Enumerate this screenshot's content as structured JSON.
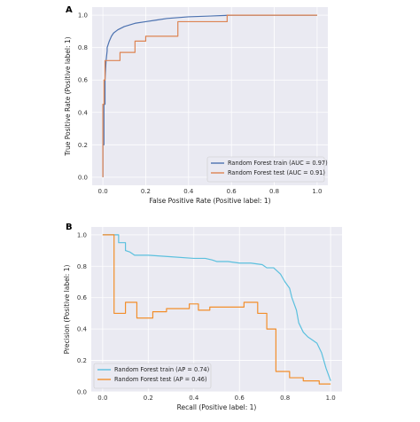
{
  "chart_data": [
    {
      "panel": "A",
      "type": "line",
      "title": "",
      "xlabel": "False Positive Rate (Positive label: 1)",
      "ylabel": "True Positive Rate (Positive label: 1)",
      "xlim": [
        -0.05,
        1.05
      ],
      "ylim": [
        -0.05,
        1.05
      ],
      "xticks": [
        "0.0",
        "0.2",
        "0.4",
        "0.6",
        "0.8",
        "1.0"
      ],
      "yticks": [
        "0.0",
        "0.2",
        "0.4",
        "0.6",
        "0.8",
        "1.0"
      ],
      "grid": true,
      "legend_position": "bottom-right",
      "series": [
        {
          "name": "Random Forest train (AUC = 0.97)",
          "color": "#4c72b0",
          "x": [
            0.0,
            0.0,
            0.005,
            0.005,
            0.01,
            0.01,
            0.015,
            0.02,
            0.02,
            0.03,
            0.04,
            0.05,
            0.07,
            0.1,
            0.15,
            0.2,
            0.25,
            0.3,
            0.4,
            0.5,
            0.6,
            0.7,
            0.8,
            0.9,
            1.0
          ],
          "y": [
            0.0,
            0.2,
            0.2,
            0.45,
            0.45,
            0.6,
            0.72,
            0.78,
            0.8,
            0.84,
            0.87,
            0.89,
            0.91,
            0.93,
            0.95,
            0.96,
            0.97,
            0.98,
            0.99,
            0.995,
            1.0,
            1.0,
            1.0,
            1.0,
            1.0
          ]
        },
        {
          "name": "Random Forest test (AUC = 0.91)",
          "color": "#dd8452",
          "x": [
            0.0,
            0.0,
            0.005,
            0.005,
            0.01,
            0.01,
            0.02,
            0.02,
            0.08,
            0.08,
            0.15,
            0.15,
            0.2,
            0.2,
            0.35,
            0.35,
            0.58,
            0.58,
            1.0
          ],
          "y": [
            0.0,
            0.45,
            0.45,
            0.6,
            0.6,
            0.72,
            0.72,
            0.72,
            0.72,
            0.77,
            0.77,
            0.84,
            0.84,
            0.87,
            0.87,
            0.96,
            0.96,
            1.0,
            1.0
          ]
        }
      ]
    },
    {
      "panel": "B",
      "type": "line",
      "title": "",
      "xlabel": "Recall (Positive label: 1)",
      "ylabel": "Precision (Positive label: 1)",
      "xlim": [
        -0.05,
        1.05
      ],
      "ylim": [
        0.0,
        1.05
      ],
      "xticks": [
        "0.0",
        "0.2",
        "0.4",
        "0.6",
        "0.8",
        "1.0"
      ],
      "yticks": [
        "0.0",
        "0.2",
        "0.4",
        "0.6",
        "0.8",
        "1.0"
      ],
      "grid": true,
      "legend_position": "bottom-left",
      "series": [
        {
          "name": "Random Forest train (AP = 0.74)",
          "color": "#5bc0de",
          "x": [
            0.0,
            0.07,
            0.07,
            0.1,
            0.1,
            0.12,
            0.14,
            0.2,
            0.3,
            0.4,
            0.45,
            0.48,
            0.5,
            0.55,
            0.6,
            0.65,
            0.7,
            0.72,
            0.75,
            0.78,
            0.8,
            0.82,
            0.83,
            0.85,
            0.86,
            0.88,
            0.9,
            0.92,
            0.94,
            0.96,
            0.98,
            1.0
          ],
          "y": [
            1.0,
            1.0,
            0.95,
            0.95,
            0.9,
            0.89,
            0.87,
            0.87,
            0.86,
            0.85,
            0.85,
            0.84,
            0.83,
            0.83,
            0.82,
            0.82,
            0.81,
            0.79,
            0.79,
            0.75,
            0.7,
            0.66,
            0.6,
            0.52,
            0.44,
            0.38,
            0.35,
            0.33,
            0.31,
            0.25,
            0.15,
            0.07
          ]
        },
        {
          "name": "Random Forest test (AP = 0.46)",
          "color": "#f28e2b",
          "x": [
            0.0,
            0.05,
            0.05,
            0.1,
            0.1,
            0.15,
            0.15,
            0.22,
            0.22,
            0.28,
            0.28,
            0.38,
            0.38,
            0.42,
            0.42,
            0.47,
            0.47,
            0.62,
            0.62,
            0.68,
            0.68,
            0.72,
            0.72,
            0.76,
            0.76,
            0.82,
            0.82,
            0.88,
            0.88,
            0.95,
            0.95,
            1.0
          ],
          "y": [
            1.0,
            1.0,
            0.5,
            0.5,
            0.57,
            0.57,
            0.47,
            0.47,
            0.51,
            0.51,
            0.53,
            0.53,
            0.56,
            0.56,
            0.52,
            0.52,
            0.54,
            0.54,
            0.57,
            0.57,
            0.5,
            0.5,
            0.4,
            0.4,
            0.13,
            0.13,
            0.09,
            0.09,
            0.07,
            0.07,
            0.05,
            0.05
          ]
        }
      ]
    }
  ]
}
